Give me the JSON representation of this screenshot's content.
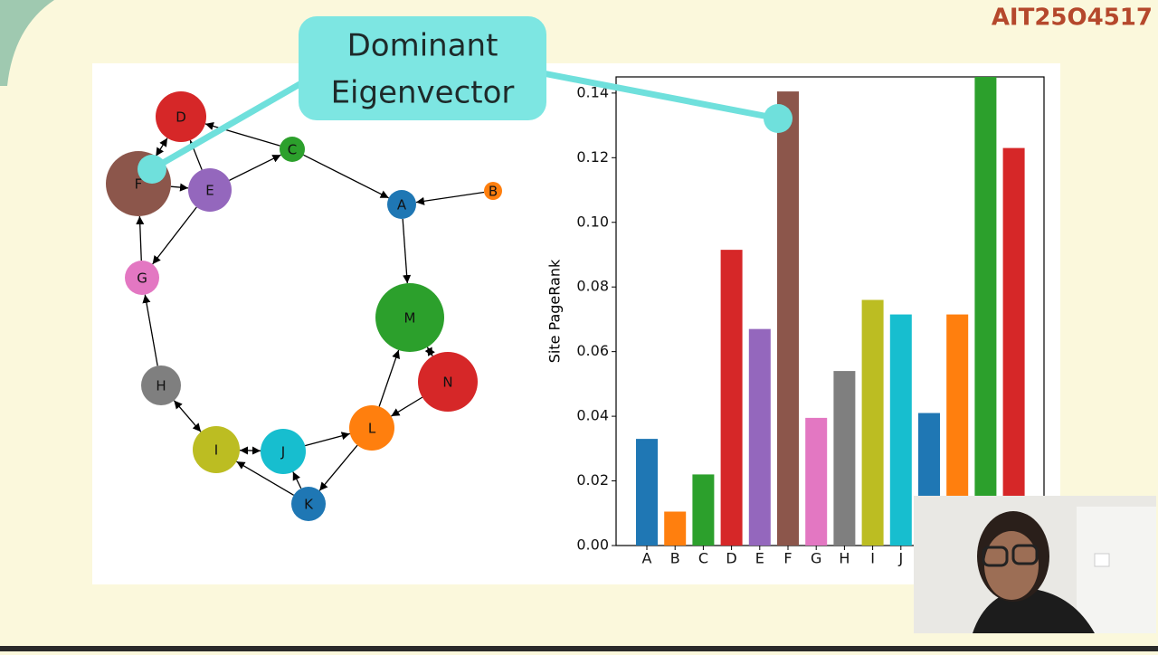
{
  "watermark": "AIT25O4517",
  "callout": {
    "lines": [
      "Dominant",
      "Eigenvector"
    ]
  },
  "graph": {
    "nodes": [
      {
        "label": "D"
      },
      {
        "label": "F"
      },
      {
        "label": "E"
      },
      {
        "label": "C"
      },
      {
        "label": "A"
      },
      {
        "label": "B"
      },
      {
        "label": "G"
      },
      {
        "label": "M"
      },
      {
        "label": "N"
      },
      {
        "label": "H"
      },
      {
        "label": "L"
      },
      {
        "label": "I"
      },
      {
        "label": "J"
      },
      {
        "label": "K"
      }
    ]
  },
  "chart_data": {
    "type": "bar",
    "y_label": "Site PageRank",
    "categories": [
      "A",
      "B",
      "C",
      "D",
      "E",
      "F",
      "G",
      "H",
      "I",
      "J",
      null,
      null,
      null,
      null
    ],
    "values": [
      0.033,
      0.0105,
      0.022,
      0.0915,
      0.067,
      0.1405,
      0.0395,
      0.054,
      0.076,
      0.0715,
      0.041,
      0.0715,
      0.15,
      0.123
    ],
    "colors": [
      "#1f77b4",
      "#ff7f0e",
      "#2ca02c",
      "#d62728",
      "#9467bd",
      "#8c564b",
      "#e377c2",
      "#7f7f7f",
      "#bcbd22",
      "#17becf",
      "#1f77b4",
      "#ff7f0e",
      "#2ca02c",
      "#d62728"
    ],
    "ylim": [
      0,
      0.145
    ],
    "yticks": [
      {
        "value": 0,
        "label": "0.00"
      },
      {
        "value": 0.02,
        "label": "0.02"
      },
      {
        "value": 0.04,
        "label": "0.04"
      },
      {
        "value": 0.06,
        "label": "0.06"
      },
      {
        "value": 0.08,
        "label": "0.08"
      },
      {
        "value": 0.1,
        "label": "0.10"
      },
      {
        "value": 0.12,
        "label": "0.12"
      },
      {
        "value": 0.14,
        "label": "0.14"
      }
    ]
  }
}
